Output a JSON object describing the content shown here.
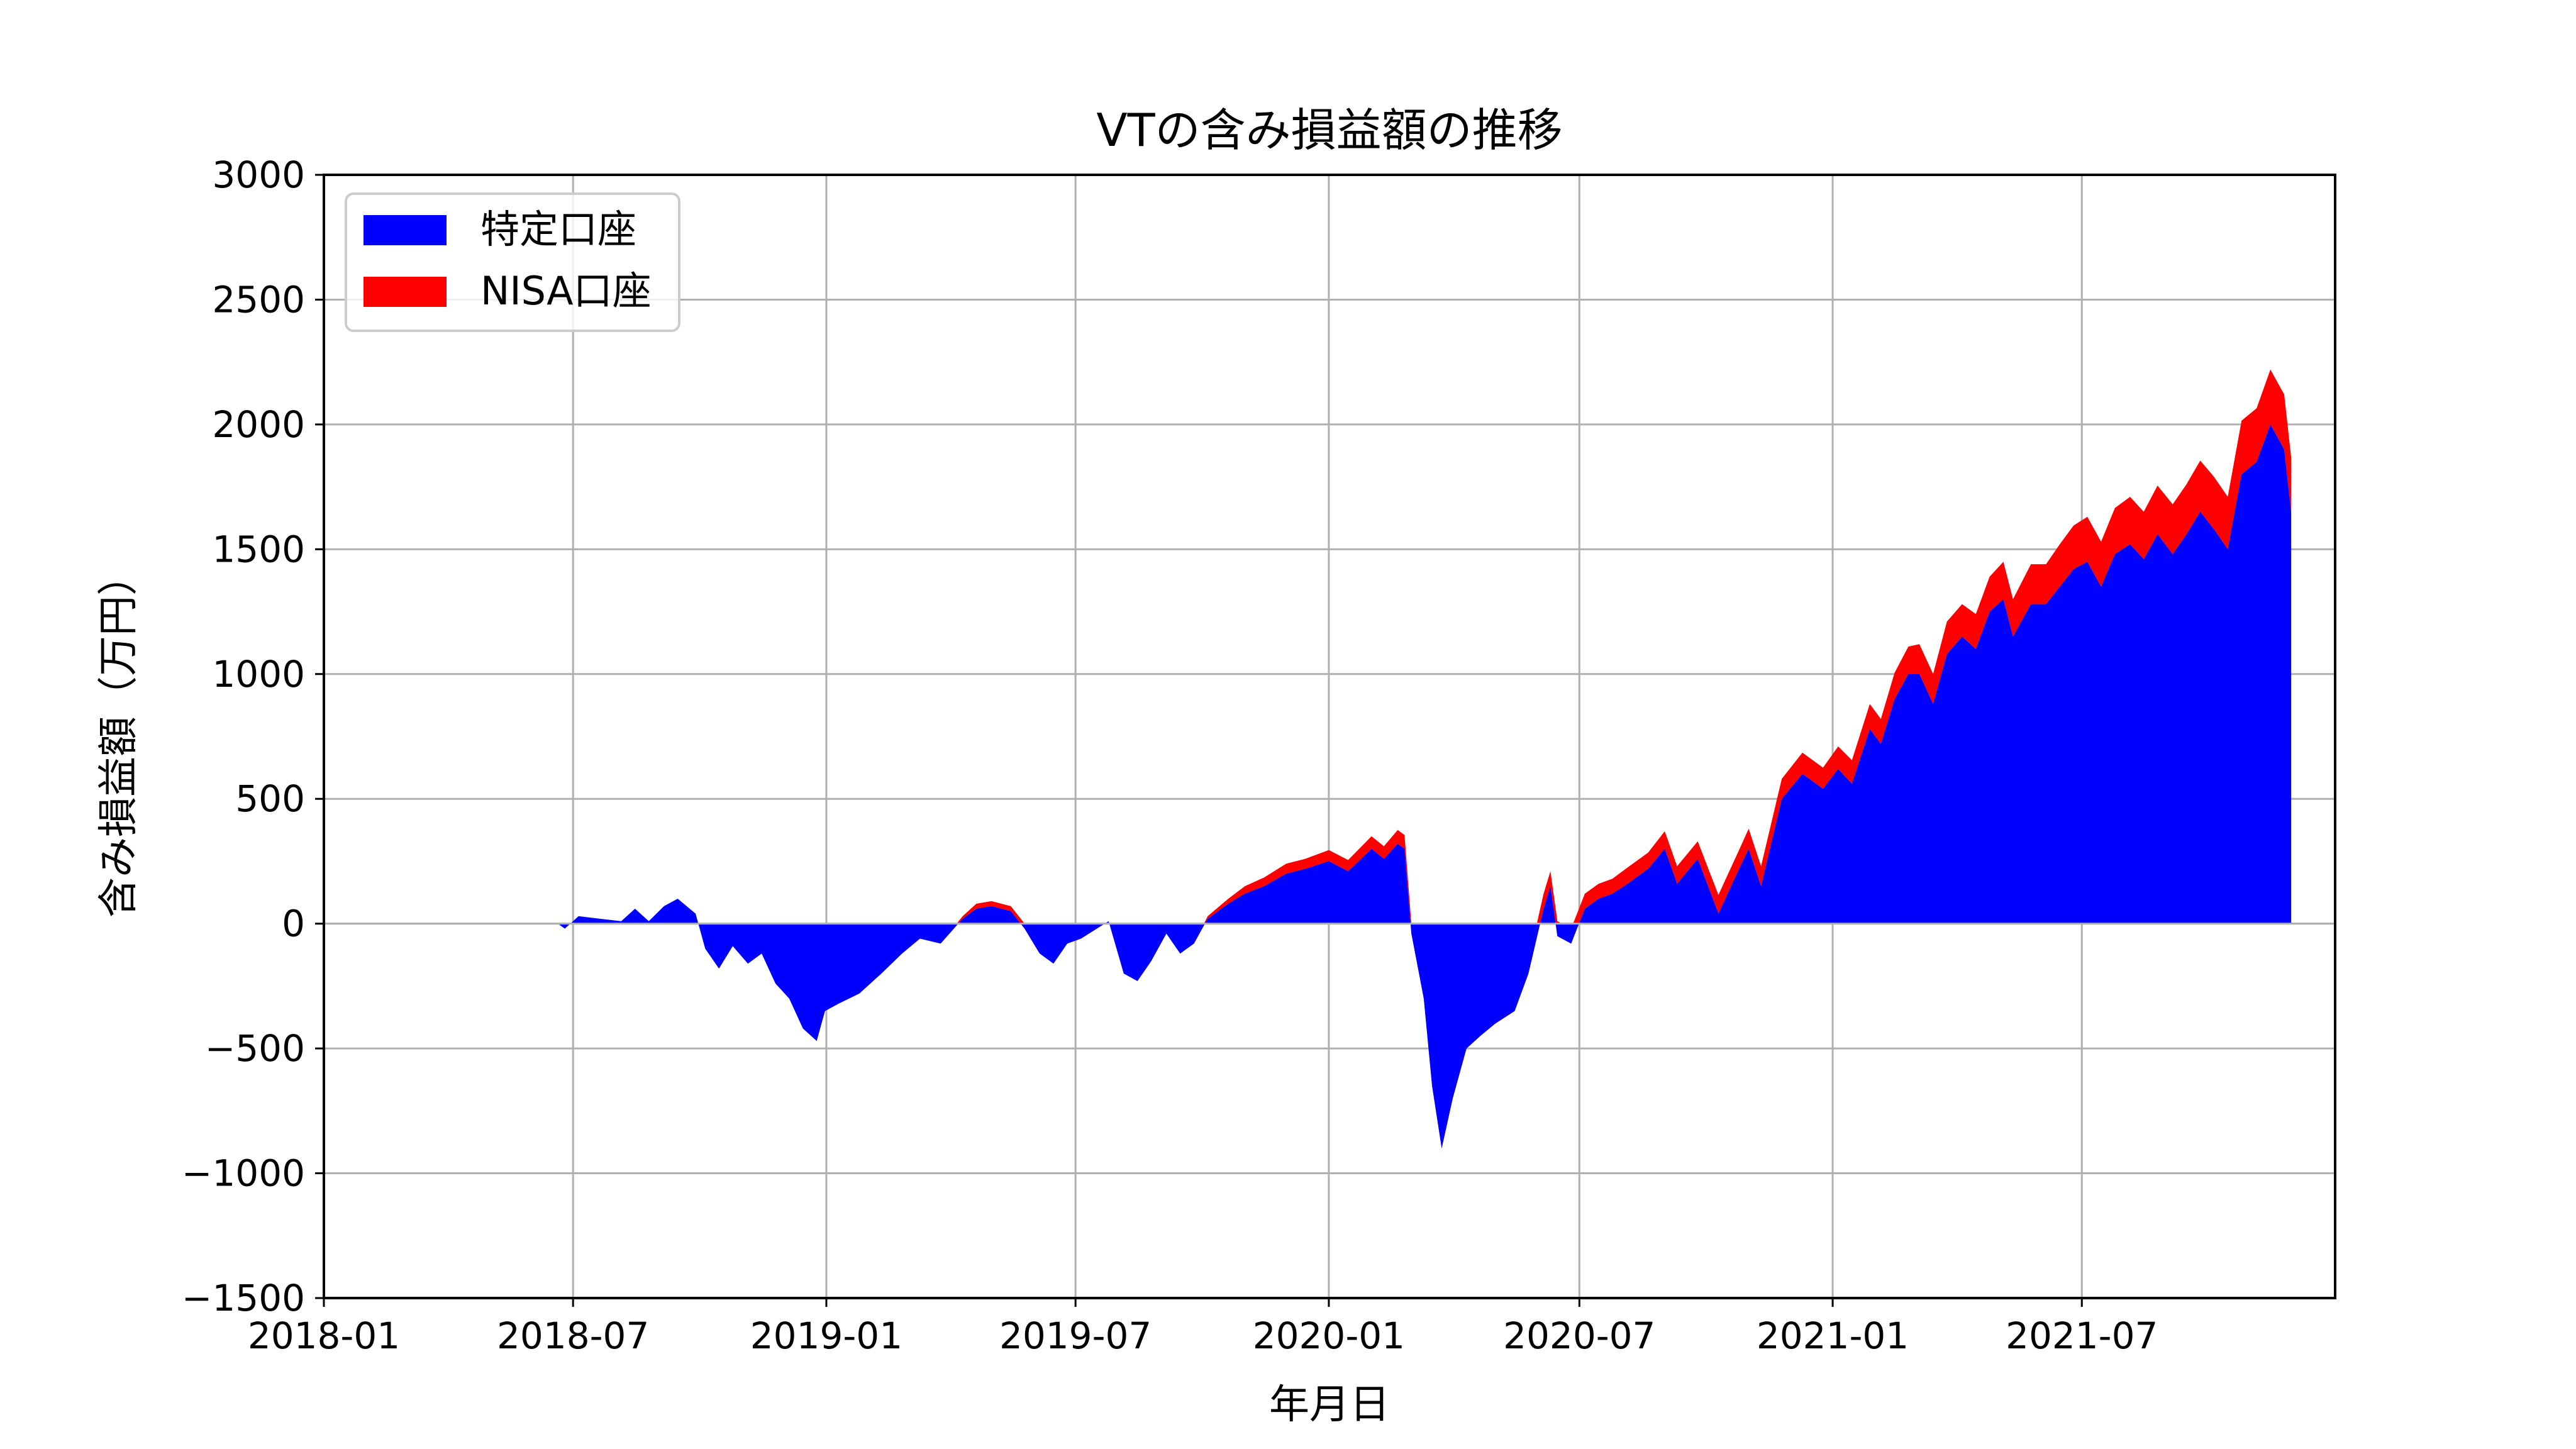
{
  "chart_data": {
    "type": "area",
    "title": "VTの含み損益額の推移",
    "xlabel": "年月日",
    "ylabel": "含み損益額（万円）",
    "ylim": [
      -1500,
      3000
    ],
    "xlim": [
      "2018-01-01",
      "2021-12-31"
    ],
    "y_ticks": [
      -1500,
      -1000,
      -500,
      0,
      500,
      1000,
      1500,
      2000,
      2500,
      3000
    ],
    "y_tick_labels": [
      "−1500",
      "−1000",
      "−500",
      "0",
      "500",
      "1000",
      "1500",
      "2000",
      "2500",
      "3000"
    ],
    "x_ticks": [
      "2018-01-01",
      "2018-07-01",
      "2019-01-01",
      "2019-07-01",
      "2020-01-01",
      "2020-07-01",
      "2021-01-01",
      "2021-07-01"
    ],
    "x_tick_labels": [
      "2018-01",
      "2018-07",
      "2019-01",
      "2019-07",
      "2020-01",
      "2020-07",
      "2021-01",
      "2021-07"
    ],
    "grid": true,
    "legend_position": "top-left",
    "stacked": true,
    "colors": {
      "特定口座": "#0000ff",
      "NISA口座": "#ff0000",
      "grid": "#b0b0b0"
    },
    "x": [
      "2018-06-20",
      "2018-06-25",
      "2018-07-05",
      "2018-07-20",
      "2018-08-05",
      "2018-08-15",
      "2018-08-25",
      "2018-09-05",
      "2018-09-15",
      "2018-09-28",
      "2018-10-05",
      "2018-10-15",
      "2018-10-25",
      "2018-11-05",
      "2018-11-15",
      "2018-11-25",
      "2018-12-05",
      "2018-12-15",
      "2018-12-25",
      "2018-12-31",
      "2019-01-10",
      "2019-01-25",
      "2019-02-10",
      "2019-02-25",
      "2019-03-10",
      "2019-03-25",
      "2019-04-10",
      "2019-04-20",
      "2019-05-01",
      "2019-05-15",
      "2019-05-25",
      "2019-06-05",
      "2019-06-15",
      "2019-06-25",
      "2019-07-05",
      "2019-07-25",
      "2019-08-05",
      "2019-08-15",
      "2019-08-25",
      "2019-09-05",
      "2019-09-15",
      "2019-09-25",
      "2019-10-05",
      "2019-10-20",
      "2019-11-01",
      "2019-11-15",
      "2019-12-01",
      "2019-12-15",
      "2020-01-01",
      "2020-01-15",
      "2020-02-01",
      "2020-02-10",
      "2020-02-20",
      "2020-02-25",
      "2020-03-01",
      "2020-03-10",
      "2020-03-16",
      "2020-03-23",
      "2020-03-31",
      "2020-04-10",
      "2020-04-20",
      "2020-05-01",
      "2020-05-15",
      "2020-05-25",
      "2020-06-05",
      "2020-06-10",
      "2020-06-15",
      "2020-06-25",
      "2020-07-05",
      "2020-07-15",
      "2020-07-25",
      "2020-08-05",
      "2020-08-20",
      "2020-09-01",
      "2020-09-10",
      "2020-09-25",
      "2020-10-10",
      "2020-10-25",
      "2020-11-01",
      "2020-11-10",
      "2020-11-25",
      "2020-12-10",
      "2020-12-25",
      "2021-01-05",
      "2021-01-15",
      "2021-01-28",
      "2021-02-05",
      "2021-02-15",
      "2021-02-25",
      "2021-03-05",
      "2021-03-15",
      "2021-03-25",
      "2021-04-05",
      "2021-04-15",
      "2021-04-25",
      "2021-05-05",
      "2021-05-12",
      "2021-05-25",
      "2021-06-05",
      "2021-06-15",
      "2021-06-25",
      "2021-07-05",
      "2021-07-15",
      "2021-07-25",
      "2021-08-05",
      "2021-08-15",
      "2021-08-25",
      "2021-09-05",
      "2021-09-15",
      "2021-09-25",
      "2021-10-05",
      "2021-10-15",
      "2021-10-25",
      "2021-11-05",
      "2021-11-15",
      "2021-11-25",
      "2021-11-30"
    ],
    "series": [
      {
        "name": "特定口座",
        "values": [
          0,
          -20,
          30,
          20,
          10,
          60,
          10,
          70,
          100,
          40,
          -100,
          -180,
          -90,
          -160,
          -120,
          -240,
          -300,
          -420,
          -470,
          -350,
          -320,
          -280,
          -200,
          -120,
          -60,
          -80,
          20,
          60,
          70,
          50,
          -20,
          -120,
          -160,
          -80,
          -60,
          10,
          -200,
          -230,
          -150,
          -40,
          -120,
          -80,
          20,
          80,
          120,
          150,
          200,
          220,
          250,
          210,
          300,
          260,
          320,
          300,
          -40,
          -300,
          -650,
          -900,
          -700,
          -500,
          -450,
          -400,
          -350,
          -200,
          60,
          150,
          -50,
          -80,
          60,
          100,
          120,
          160,
          220,
          300,
          160,
          260,
          40,
          220,
          300,
          150,
          500,
          600,
          540,
          620,
          560,
          780,
          720,
          900,
          1000,
          1000,
          880,
          1080,
          1150,
          1100,
          1250,
          1300,
          1150,
          1280,
          1280,
          1350,
          1420,
          1450,
          1350,
          1480,
          1520,
          1460,
          1560,
          1480,
          1560,
          1650,
          1580,
          1500,
          1800,
          1850,
          2000,
          1900,
          1650
        ]
      },
      {
        "name": "NISA口座",
        "values": [
          0,
          0,
          0,
          0,
          0,
          0,
          0,
          0,
          0,
          0,
          0,
          0,
          0,
          0,
          0,
          0,
          0,
          0,
          0,
          0,
          0,
          0,
          0,
          0,
          0,
          0,
          10,
          20,
          20,
          20,
          20,
          0,
          0,
          0,
          0,
          0,
          0,
          0,
          0,
          0,
          0,
          0,
          10,
          20,
          30,
          35,
          40,
          40,
          45,
          45,
          50,
          50,
          55,
          55,
          40,
          35,
          30,
          30,
          40,
          45,
          45,
          50,
          50,
          50,
          60,
          60,
          60,
          60,
          60,
          60,
          60,
          65,
          65,
          70,
          70,
          70,
          75,
          75,
          80,
          80,
          80,
          85,
          85,
          90,
          95,
          100,
          100,
          105,
          110,
          120,
          120,
          130,
          130,
          140,
          140,
          150,
          150,
          160,
          160,
          170,
          175,
          180,
          180,
          185,
          190,
          190,
          195,
          200,
          200,
          205,
          210,
          210,
          215,
          215,
          220,
          220,
          220
        ]
      }
    ]
  }
}
